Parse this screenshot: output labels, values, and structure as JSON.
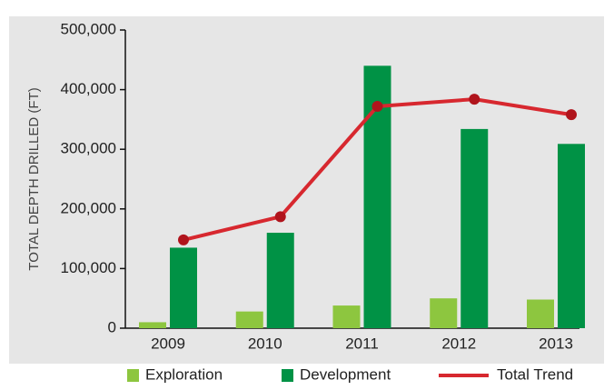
{
  "chart_data": {
    "type": "bar_line",
    "y_label": "TOTAL DEPTH DRILLED (FT)",
    "categories": [
      "2009",
      "2010",
      "2011",
      "2012",
      "2013"
    ],
    "series": [
      {
        "name": "Exploration",
        "color": "#8dc63f",
        "values": [
          10000,
          28000,
          38000,
          50000,
          48000
        ]
      },
      {
        "name": "Development",
        "color": "#009245",
        "values": [
          135000,
          160000,
          440000,
          334000,
          309000
        ]
      },
      {
        "name": "Total Trend",
        "color": "#d7282f",
        "marker_color": "#b0141c",
        "type": "line",
        "values": [
          148000,
          187000,
          372000,
          384000,
          358000
        ]
      }
    ],
    "ylim": [
      0,
      500000
    ],
    "yticks": [
      0,
      {
        "value": 100000,
        "label": "100,000"
      },
      {
        "value": 200000,
        "label": "200,000"
      },
      {
        "value": 300000,
        "label": "300,000"
      },
      {
        "value": 400000,
        "label": "400,000"
      },
      {
        "value": 500000,
        "label": "500,000"
      }
    ]
  }
}
